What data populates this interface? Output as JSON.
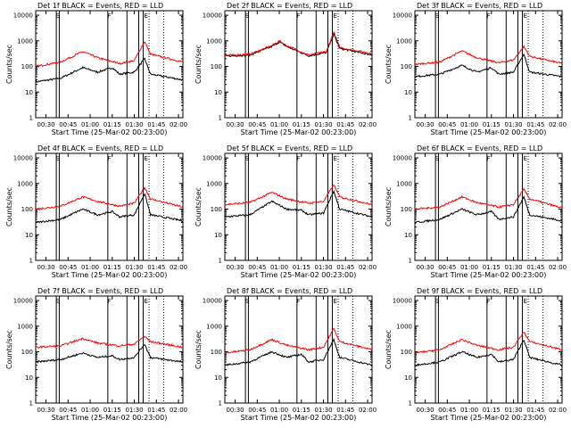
{
  "colors": {
    "events": "#000000",
    "lld": "#ff0000",
    "axes": "#000000",
    "background": "#ffffff"
  },
  "x_tick_labels": [
    "00:30",
    "00:45",
    "01:00",
    "01:15",
    "01:30",
    "01:45",
    "02:00"
  ],
  "x_label": "Start Time (25-Mar-02 00:23:00)",
  "y_label": "Counts/sec",
  "y_tick_labels": [
    "1",
    "10",
    "100",
    "1000",
    "10000"
  ],
  "chart_data": [
    {
      "title": "Det 1f BLACK = Events, RED = LLD",
      "type": "line",
      "xlim": [
        "00:23",
        "02:03"
      ],
      "ylim": [
        1,
        15000
      ],
      "log_y": true,
      "vlines_solid": [
        "00:37",
        "00:39",
        "01:12",
        "01:25",
        "01:33",
        "01:36"
      ],
      "vlines_dotted": [
        "01:40",
        "01:50"
      ],
      "markers": {
        "S": "00:38",
        "F": "01:13",
        "E": "01:38"
      },
      "series": [
        {
          "name": "Events",
          "color": "#000000",
          "points": [
            [
              "00:23",
              25
            ],
            [
              "00:40",
              35
            ],
            [
              "00:55",
              90
            ],
            [
              "01:05",
              60
            ],
            [
              "01:15",
              90
            ],
            [
              "01:20",
              50
            ],
            [
              "01:30",
              60
            ],
            [
              "01:37",
              200
            ],
            [
              "01:41",
              50
            ],
            [
              "02:03",
              30
            ]
          ]
        },
        {
          "name": "LLD",
          "color": "#ff0000",
          "points": [
            [
              "00:23",
              100
            ],
            [
              "00:40",
              150
            ],
            [
              "00:55",
              380
            ],
            [
              "01:05",
              220
            ],
            [
              "01:20",
              130
            ],
            [
              "01:30",
              170
            ],
            [
              "01:37",
              950
            ],
            [
              "01:41",
              300
            ],
            [
              "02:03",
              150
            ]
          ]
        }
      ]
    },
    {
      "title": "Det 2f BLACK = Events, RED = LLD",
      "type": "line",
      "xlim": [
        "00:23",
        "02:03"
      ],
      "ylim": [
        1,
        15000
      ],
      "log_y": true,
      "vlines_solid": [
        "00:37",
        "00:39",
        "01:12",
        "01:25",
        "01:33",
        "01:36"
      ],
      "vlines_dotted": [
        "01:40",
        "01:50"
      ],
      "markers": {
        "S": "00:38",
        "F": "01:13",
        "E": "01:38"
      },
      "series": [
        {
          "name": "Events",
          "color": "#000000",
          "points": [
            [
              "00:23",
              250
            ],
            [
              "00:40",
              280
            ],
            [
              "00:55",
              600
            ],
            [
              "01:00",
              900
            ],
            [
              "01:05",
              600
            ],
            [
              "01:20",
              260
            ],
            [
              "01:32",
              350
            ],
            [
              "01:37",
              1800
            ],
            [
              "01:41",
              500
            ],
            [
              "02:03",
              280
            ]
          ]
        },
        {
          "name": "LLD",
          "color": "#ff0000",
          "points": [
            [
              "00:23",
              270
            ],
            [
              "00:40",
              300
            ],
            [
              "00:55",
              650
            ],
            [
              "01:00",
              1000
            ],
            [
              "01:05",
              650
            ],
            [
              "01:20",
              280
            ],
            [
              "01:32",
              380
            ],
            [
              "01:37",
              2200
            ],
            [
              "01:41",
              550
            ],
            [
              "02:03",
              320
            ]
          ]
        }
      ]
    },
    {
      "title": "Det 3f BLACK = Events, RED = LLD",
      "type": "line",
      "xlim": [
        "00:23",
        "02:03"
      ],
      "ylim": [
        1,
        15000
      ],
      "log_y": true,
      "vlines_solid": [
        "00:37",
        "00:39",
        "01:12",
        "01:25",
        "01:33",
        "01:36"
      ],
      "vlines_dotted": [
        "01:40",
        "01:50"
      ],
      "markers": {
        "S": "00:38",
        "F": "01:13",
        "E": "01:38"
      },
      "series": [
        {
          "name": "Events",
          "color": "#000000",
          "points": [
            [
              "00:23",
              40
            ],
            [
              "00:40",
              50
            ],
            [
              "00:55",
              110
            ],
            [
              "01:05",
              60
            ],
            [
              "01:15",
              90
            ],
            [
              "01:20",
              50
            ],
            [
              "01:30",
              60
            ],
            [
              "01:37",
              300
            ],
            [
              "01:41",
              60
            ],
            [
              "02:03",
              40
            ]
          ]
        },
        {
          "name": "LLD",
          "color": "#ff0000",
          "points": [
            [
              "00:23",
              120
            ],
            [
              "00:40",
              150
            ],
            [
              "00:55",
              400
            ],
            [
              "01:05",
              220
            ],
            [
              "01:20",
              140
            ],
            [
              "01:30",
              180
            ],
            [
              "01:37",
              600
            ],
            [
              "01:41",
              250
            ],
            [
              "02:03",
              130
            ]
          ]
        }
      ]
    },
    {
      "title": "Det 4f BLACK = Events, RED = LLD",
      "type": "line",
      "xlim": [
        "00:23",
        "02:03"
      ],
      "ylim": [
        1,
        15000
      ],
      "log_y": true,
      "vlines_solid": [
        "00:37",
        "00:39",
        "01:12",
        "01:25",
        "01:33",
        "01:36"
      ],
      "vlines_dotted": [
        "01:40",
        "01:50"
      ],
      "markers": {
        "S": "00:38",
        "F": "01:13",
        "E": "01:38"
      },
      "series": [
        {
          "name": "Events",
          "color": "#000000",
          "points": [
            [
              "00:23",
              30
            ],
            [
              "00:40",
              40
            ],
            [
              "00:55",
              100
            ],
            [
              "01:05",
              60
            ],
            [
              "01:15",
              80
            ],
            [
              "01:20",
              50
            ],
            [
              "01:30",
              60
            ],
            [
              "01:37",
              400
            ],
            [
              "01:41",
              60
            ],
            [
              "02:03",
              35
            ]
          ]
        },
        {
          "name": "LLD",
          "color": "#ff0000",
          "points": [
            [
              "00:23",
              100
            ],
            [
              "00:40",
              130
            ],
            [
              "00:55",
              300
            ],
            [
              "01:05",
              200
            ],
            [
              "01:20",
              130
            ],
            [
              "01:30",
              170
            ],
            [
              "01:37",
              700
            ],
            [
              "01:41",
              250
            ],
            [
              "02:03",
              120
            ]
          ]
        }
      ]
    },
    {
      "title": "Det 5f BLACK = Events, RED = LLD",
      "type": "line",
      "xlim": [
        "00:23",
        "02:03"
      ],
      "ylim": [
        1,
        15000
      ],
      "log_y": true,
      "vlines_solid": [
        "00:37",
        "00:39",
        "01:12",
        "01:25",
        "01:33",
        "01:36"
      ],
      "vlines_dotted": [
        "01:40",
        "01:50"
      ],
      "markers": {
        "S": "00:38",
        "F": "01:13",
        "E": "01:38"
      },
      "series": [
        {
          "name": "Events",
          "color": "#000000",
          "points": [
            [
              "00:23",
              50
            ],
            [
              "00:40",
              60
            ],
            [
              "00:55",
              200
            ],
            [
              "01:05",
              100
            ],
            [
              "01:15",
              90
            ],
            [
              "01:20",
              60
            ],
            [
              "01:30",
              70
            ],
            [
              "01:37",
              500
            ],
            [
              "01:41",
              100
            ],
            [
              "02:03",
              50
            ]
          ]
        },
        {
          "name": "LLD",
          "color": "#ff0000",
          "points": [
            [
              "00:23",
              150
            ],
            [
              "00:40",
              180
            ],
            [
              "00:55",
              450
            ],
            [
              "01:05",
              250
            ],
            [
              "01:20",
              170
            ],
            [
              "01:30",
              200
            ],
            [
              "01:37",
              900
            ],
            [
              "01:41",
              300
            ],
            [
              "02:03",
              150
            ]
          ]
        }
      ]
    },
    {
      "title": "Det 6f BLACK = Events, RED = LLD",
      "type": "line",
      "xlim": [
        "00:23",
        "02:03"
      ],
      "ylim": [
        1,
        15000
      ],
      "log_y": true,
      "vlines_solid": [
        "00:37",
        "00:39",
        "01:12",
        "01:25",
        "01:33",
        "01:36"
      ],
      "vlines_dotted": [
        "01:40",
        "01:50"
      ],
      "markers": {
        "S": "00:38",
        "F": "01:13",
        "E": "01:38"
      },
      "series": [
        {
          "name": "Events",
          "color": "#000000",
          "points": [
            [
              "00:23",
              30
            ],
            [
              "00:40",
              40
            ],
            [
              "00:55",
              100
            ],
            [
              "01:05",
              60
            ],
            [
              "01:15",
              80
            ],
            [
              "01:20",
              40
            ],
            [
              "01:30",
              50
            ],
            [
              "01:37",
              300
            ],
            [
              "01:41",
              60
            ],
            [
              "02:03",
              35
            ]
          ]
        },
        {
          "name": "LLD",
          "color": "#ff0000",
          "points": [
            [
              "00:23",
              100
            ],
            [
              "00:40",
              120
            ],
            [
              "00:55",
              300
            ],
            [
              "01:05",
              180
            ],
            [
              "01:20",
              120
            ],
            [
              "01:30",
              150
            ],
            [
              "01:37",
              600
            ],
            [
              "01:41",
              250
            ],
            [
              "02:03",
              110
            ]
          ]
        }
      ]
    },
    {
      "title": "Det 7f BLACK = Events, RED = LLD",
      "type": "line",
      "xlim": [
        "00:23",
        "02:03"
      ],
      "ylim": [
        1,
        15000
      ],
      "log_y": true,
      "vlines_solid": [
        "00:37",
        "00:39",
        "01:12",
        "01:25",
        "01:33",
        "01:36"
      ],
      "vlines_dotted": [
        "01:40",
        "01:50"
      ],
      "markers": {
        "S": "00:38",
        "F": "01:13",
        "E": "01:38"
      },
      "series": [
        {
          "name": "Events",
          "color": "#000000",
          "points": [
            [
              "00:23",
              40
            ],
            [
              "00:40",
              50
            ],
            [
              "00:55",
              90
            ],
            [
              "01:05",
              60
            ],
            [
              "01:15",
              70
            ],
            [
              "01:20",
              50
            ],
            [
              "01:30",
              60
            ],
            [
              "01:37",
              200
            ],
            [
              "01:41",
              60
            ],
            [
              "02:03",
              40
            ]
          ]
        },
        {
          "name": "LLD",
          "color": "#ff0000",
          "points": [
            [
              "00:23",
              150
            ],
            [
              "00:40",
              170
            ],
            [
              "00:55",
              330
            ],
            [
              "01:05",
              220
            ],
            [
              "01:20",
              170
            ],
            [
              "01:30",
              200
            ],
            [
              "01:37",
              400
            ],
            [
              "01:41",
              250
            ],
            [
              "02:03",
              150
            ]
          ]
        }
      ]
    },
    {
      "title": "Det 8f BLACK = Events, RED = LLD",
      "type": "line",
      "xlim": [
        "00:23",
        "02:03"
      ],
      "ylim": [
        1,
        15000
      ],
      "log_y": true,
      "vlines_solid": [
        "00:37",
        "00:39",
        "01:12",
        "01:25",
        "01:33",
        "01:36"
      ],
      "vlines_dotted": [
        "01:40",
        "01:50"
      ],
      "markers": {
        "S": "00:38",
        "F": "01:13",
        "E": "01:38"
      },
      "series": [
        {
          "name": "Events",
          "color": "#000000",
          "points": [
            [
              "00:23",
              30
            ],
            [
              "00:40",
              40
            ],
            [
              "00:55",
              100
            ],
            [
              "01:05",
              60
            ],
            [
              "01:15",
              80
            ],
            [
              "01:20",
              40
            ],
            [
              "01:30",
              50
            ],
            [
              "01:37",
              300
            ],
            [
              "01:41",
              60
            ],
            [
              "02:03",
              30
            ]
          ]
        },
        {
          "name": "LLD",
          "color": "#ff0000",
          "points": [
            [
              "00:23",
              90
            ],
            [
              "00:40",
              120
            ],
            [
              "00:55",
              300
            ],
            [
              "01:05",
              180
            ],
            [
              "01:20",
              120
            ],
            [
              "01:30",
              150
            ],
            [
              "01:37",
              800
            ],
            [
              "01:41",
              250
            ],
            [
              "02:03",
              120
            ]
          ]
        }
      ]
    },
    {
      "title": "Det 9f BLACK = Events, RED = LLD",
      "type": "line",
      "xlim": [
        "00:23",
        "02:03"
      ],
      "ylim": [
        1,
        15000
      ],
      "log_y": true,
      "vlines_solid": [
        "00:37",
        "00:39",
        "01:12",
        "01:25",
        "01:33",
        "01:36"
      ],
      "vlines_dotted": [
        "01:40",
        "01:50"
      ],
      "markers": {
        "S": "00:38",
        "F": "01:13",
        "E": "01:38"
      },
      "series": [
        {
          "name": "Events",
          "color": "#000000",
          "points": [
            [
              "00:23",
              30
            ],
            [
              "00:40",
              40
            ],
            [
              "00:55",
              100
            ],
            [
              "01:05",
              60
            ],
            [
              "01:15",
              80
            ],
            [
              "01:20",
              40
            ],
            [
              "01:30",
              50
            ],
            [
              "01:37",
              300
            ],
            [
              "01:41",
              60
            ],
            [
              "02:03",
              30
            ]
          ]
        },
        {
          "name": "LLD",
          "color": "#ff0000",
          "points": [
            [
              "00:23",
              90
            ],
            [
              "00:40",
              120
            ],
            [
              "00:55",
              300
            ],
            [
              "01:05",
              180
            ],
            [
              "01:20",
              120
            ],
            [
              "01:30",
              150
            ],
            [
              "01:37",
              600
            ],
            [
              "01:41",
              250
            ],
            [
              "02:03",
              120
            ]
          ]
        }
      ]
    }
  ]
}
